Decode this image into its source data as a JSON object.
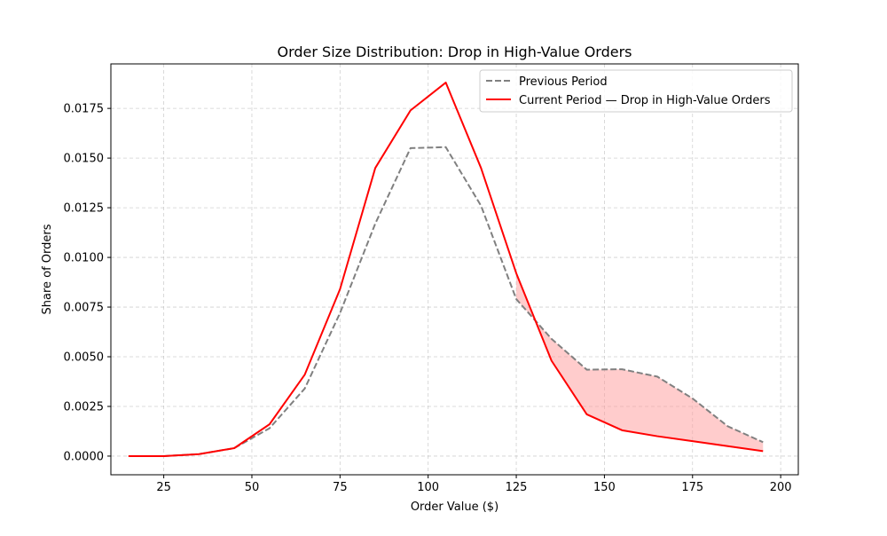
{
  "chart_data": {
    "type": "line",
    "title": "Order Size Distribution: Drop in High-Value Orders",
    "xlabel": "Order Value ($)",
    "ylabel": "Share of Orders",
    "xlim": [
      10,
      205
    ],
    "ylim": [
      -0.00094,
      0.01974
    ],
    "x_ticks": [
      25,
      50,
      75,
      100,
      125,
      150,
      175,
      200
    ],
    "y_ticks": [
      0.0,
      0.0025,
      0.005,
      0.0075,
      0.01,
      0.0125,
      0.015,
      0.0175
    ],
    "x_tick_labels": [
      "25",
      "50",
      "75",
      "100",
      "125",
      "150",
      "175",
      "200"
    ],
    "y_tick_labels": [
      "0.0000",
      "0.0025",
      "0.0050",
      "0.0075",
      "0.0100",
      "0.0125",
      "0.0150",
      "0.0175"
    ],
    "grid": true,
    "legend_position": "top-right",
    "x": [
      15,
      25,
      35,
      45,
      55,
      65,
      75,
      85,
      95,
      105,
      115,
      125,
      135,
      145,
      155,
      165,
      175,
      185,
      195
    ],
    "series": [
      {
        "name": "Previous Period",
        "style": "dashed",
        "color": "#808080",
        "values": [
          0.0,
          0.0,
          0.0001,
          0.0004,
          0.0014,
          0.0034,
          0.0072,
          0.0117,
          0.0155,
          0.01555,
          0.0126,
          0.0079,
          0.0059,
          0.00435,
          0.00437,
          0.004,
          0.0029,
          0.0015,
          0.0007
        ]
      },
      {
        "name": "Current Period — Drop in High-Value Orders",
        "style": "solid",
        "color": "#ff0000",
        "values": [
          0.0,
          0.0,
          0.0001,
          0.0004,
          0.0016,
          0.0041,
          0.0084,
          0.0145,
          0.0174,
          0.0188,
          0.0145,
          0.0092,
          0.0048,
          0.0021,
          0.0013,
          0.001,
          0.00075,
          0.0005,
          0.00025
        ]
      }
    ],
    "shaded_region": {
      "x_from": 125,
      "x_to": 195,
      "between": [
        "Previous Period",
        "Current Period — Drop in High-Value Orders"
      ],
      "color": "#ff9999"
    }
  }
}
